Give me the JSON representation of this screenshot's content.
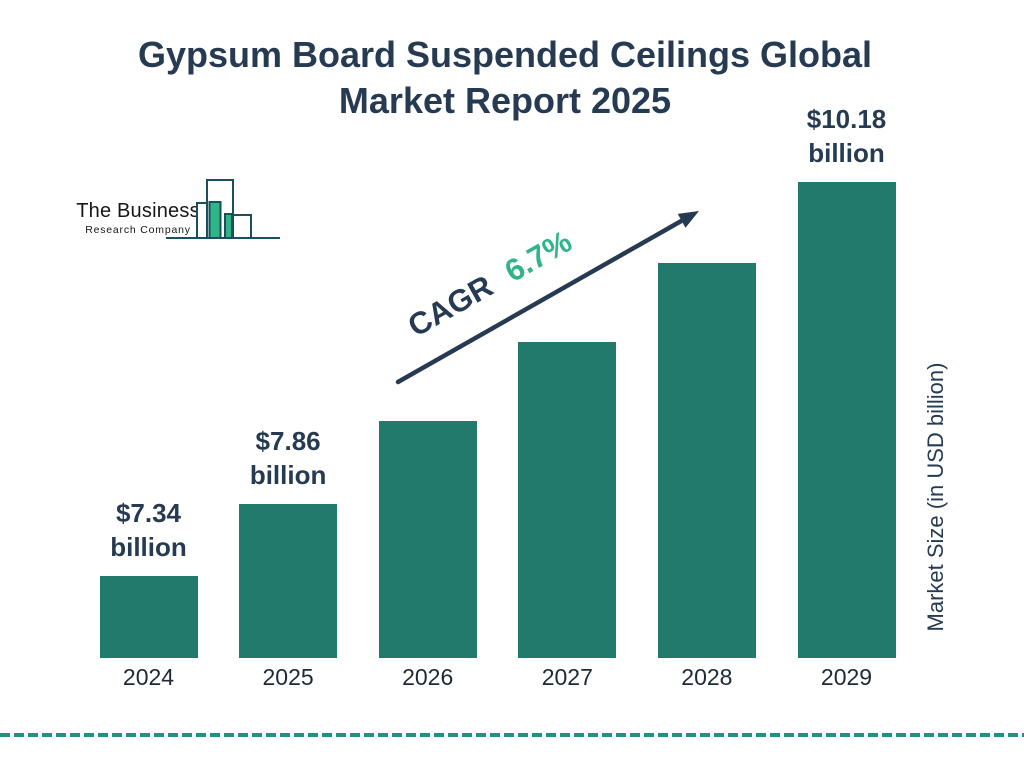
{
  "title": {
    "line1": "Gypsum Board Suspended Ceilings Global",
    "line2": "Market Report 2025"
  },
  "logo": {
    "company_line1": "The Business",
    "company_line2": "Research Company"
  },
  "annotation": {
    "cagr_label": "CAGR",
    "cagr_value": "6.7%"
  },
  "y_axis_label": "Market Size (in USD billion)",
  "colors": {
    "navy_text": "#263A52",
    "bar_teal": "#227A6C",
    "accent_green": "#2FB586",
    "dashed_line_teal": "#1F9188",
    "logo_outline": "#1A4F5E",
    "year_text": "#1C2A38",
    "background": "#FFFFFF"
  },
  "chart_data": {
    "type": "bar",
    "title": "Gypsum Board Suspended Ceilings Global Market Report 2025",
    "categories": [
      "2024",
      "2025",
      "2026",
      "2027",
      "2028",
      "2029"
    ],
    "values": [
      7.34,
      7.86,
      8.46,
      9.03,
      9.6,
      10.18
    ],
    "value_is_estimated": [
      false,
      false,
      true,
      true,
      true,
      false
    ],
    "bar_labels": [
      [
        "$7.34",
        "billion"
      ],
      [
        "$7.86",
        "billion"
      ],
      null,
      null,
      null,
      [
        "$10.18",
        "billion"
      ]
    ],
    "xlabel": "",
    "ylabel": "Market Size (in USD billion)",
    "unit": "USD billion",
    "annotation": "CAGR 6.7%",
    "legend": false,
    "grid": false
  }
}
